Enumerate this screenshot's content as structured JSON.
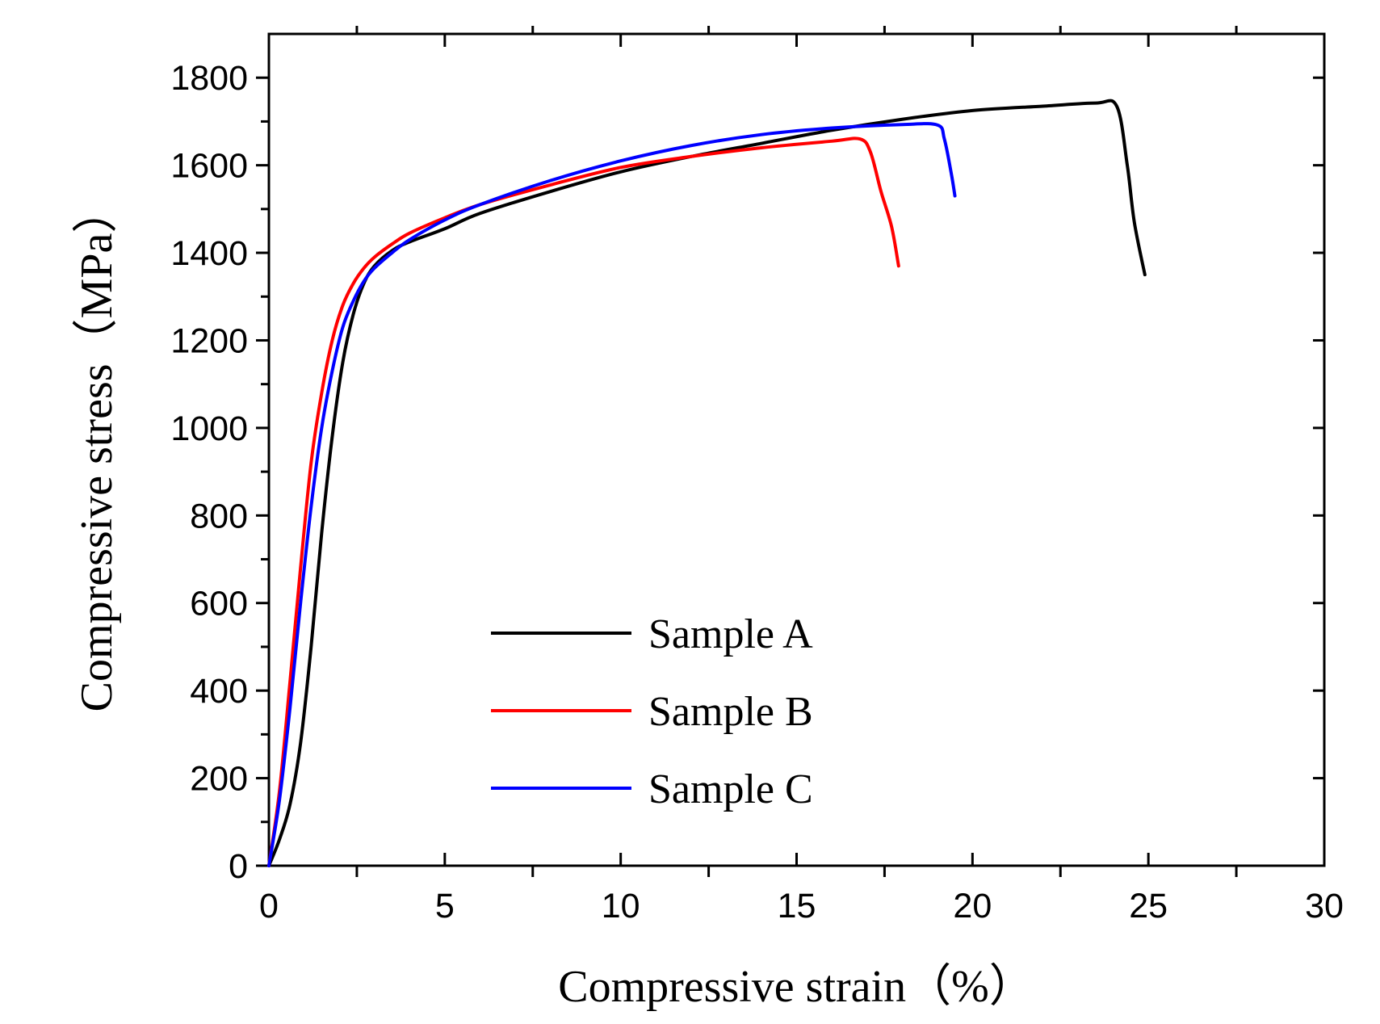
{
  "chart_data": {
    "type": "line",
    "xlabel": "Compressive strain（%）",
    "ylabel": "Compressive stress（MPa）",
    "xlim": [
      0,
      30
    ],
    "ylim": [
      0,
      1900
    ],
    "x_ticks": [
      0,
      5,
      10,
      15,
      20,
      25,
      30
    ],
    "y_ticks": [
      0,
      200,
      400,
      600,
      800,
      1000,
      1200,
      1400,
      1600,
      1800
    ],
    "x_tick_labels": [
      "0",
      "5",
      "10",
      "15",
      "20",
      "25",
      "30"
    ],
    "y_tick_labels": [
      "0",
      "200",
      "400",
      "600",
      "800",
      "1000",
      "1200",
      "1400",
      "1600",
      "1800"
    ],
    "legend_position": "lower-center",
    "series": [
      {
        "name": "Sample A",
        "color": "#000000",
        "x": [
          0,
          0.3,
          0.6,
          0.9,
          1.2,
          1.5,
          1.8,
          2.1,
          2.4,
          2.7,
          3.0,
          3.5,
          4.0,
          5.0,
          6.0,
          8.0,
          10.0,
          12.0,
          14.0,
          16.0,
          18.0,
          20.0,
          22.0,
          23.5,
          24.1,
          24.4,
          24.6,
          24.9
        ],
        "y": [
          0,
          60,
          140,
          280,
          500,
          760,
          980,
          1150,
          1260,
          1330,
          1370,
          1405,
          1425,
          1455,
          1490,
          1540,
          1585,
          1620,
          1650,
          1680,
          1705,
          1725,
          1735,
          1742,
          1735,
          1600,
          1470,
          1350
        ]
      },
      {
        "name": "Sample B",
        "color": "#ff0000",
        "x": [
          0,
          0.3,
          0.6,
          0.9,
          1.2,
          1.5,
          1.8,
          2.1,
          2.4,
          2.7,
          3.0,
          3.5,
          4.0,
          5.0,
          6.0,
          8.0,
          10.0,
          12.0,
          14.0,
          16.0,
          16.8,
          17.1,
          17.4,
          17.7,
          17.9
        ],
        "y": [
          0,
          170,
          420,
          680,
          920,
          1080,
          1200,
          1280,
          1330,
          1365,
          1390,
          1420,
          1445,
          1480,
          1510,
          1555,
          1595,
          1620,
          1640,
          1655,
          1660,
          1630,
          1540,
          1460,
          1370
        ]
      },
      {
        "name": "Sample C",
        "color": "#0000ff",
        "x": [
          0,
          0.3,
          0.6,
          0.9,
          1.2,
          1.5,
          1.8,
          2.1,
          2.4,
          2.7,
          3.0,
          3.5,
          4.0,
          5.0,
          6.0,
          8.0,
          10.0,
          12.0,
          14.0,
          16.0,
          18.0,
          19.0,
          19.2,
          19.4,
          19.5
        ],
        "y": [
          0,
          150,
          360,
          600,
          820,
          1000,
          1130,
          1230,
          1290,
          1335,
          1365,
          1400,
          1430,
          1475,
          1510,
          1565,
          1610,
          1645,
          1670,
          1685,
          1693,
          1692,
          1660,
          1580,
          1530
        ]
      }
    ]
  }
}
